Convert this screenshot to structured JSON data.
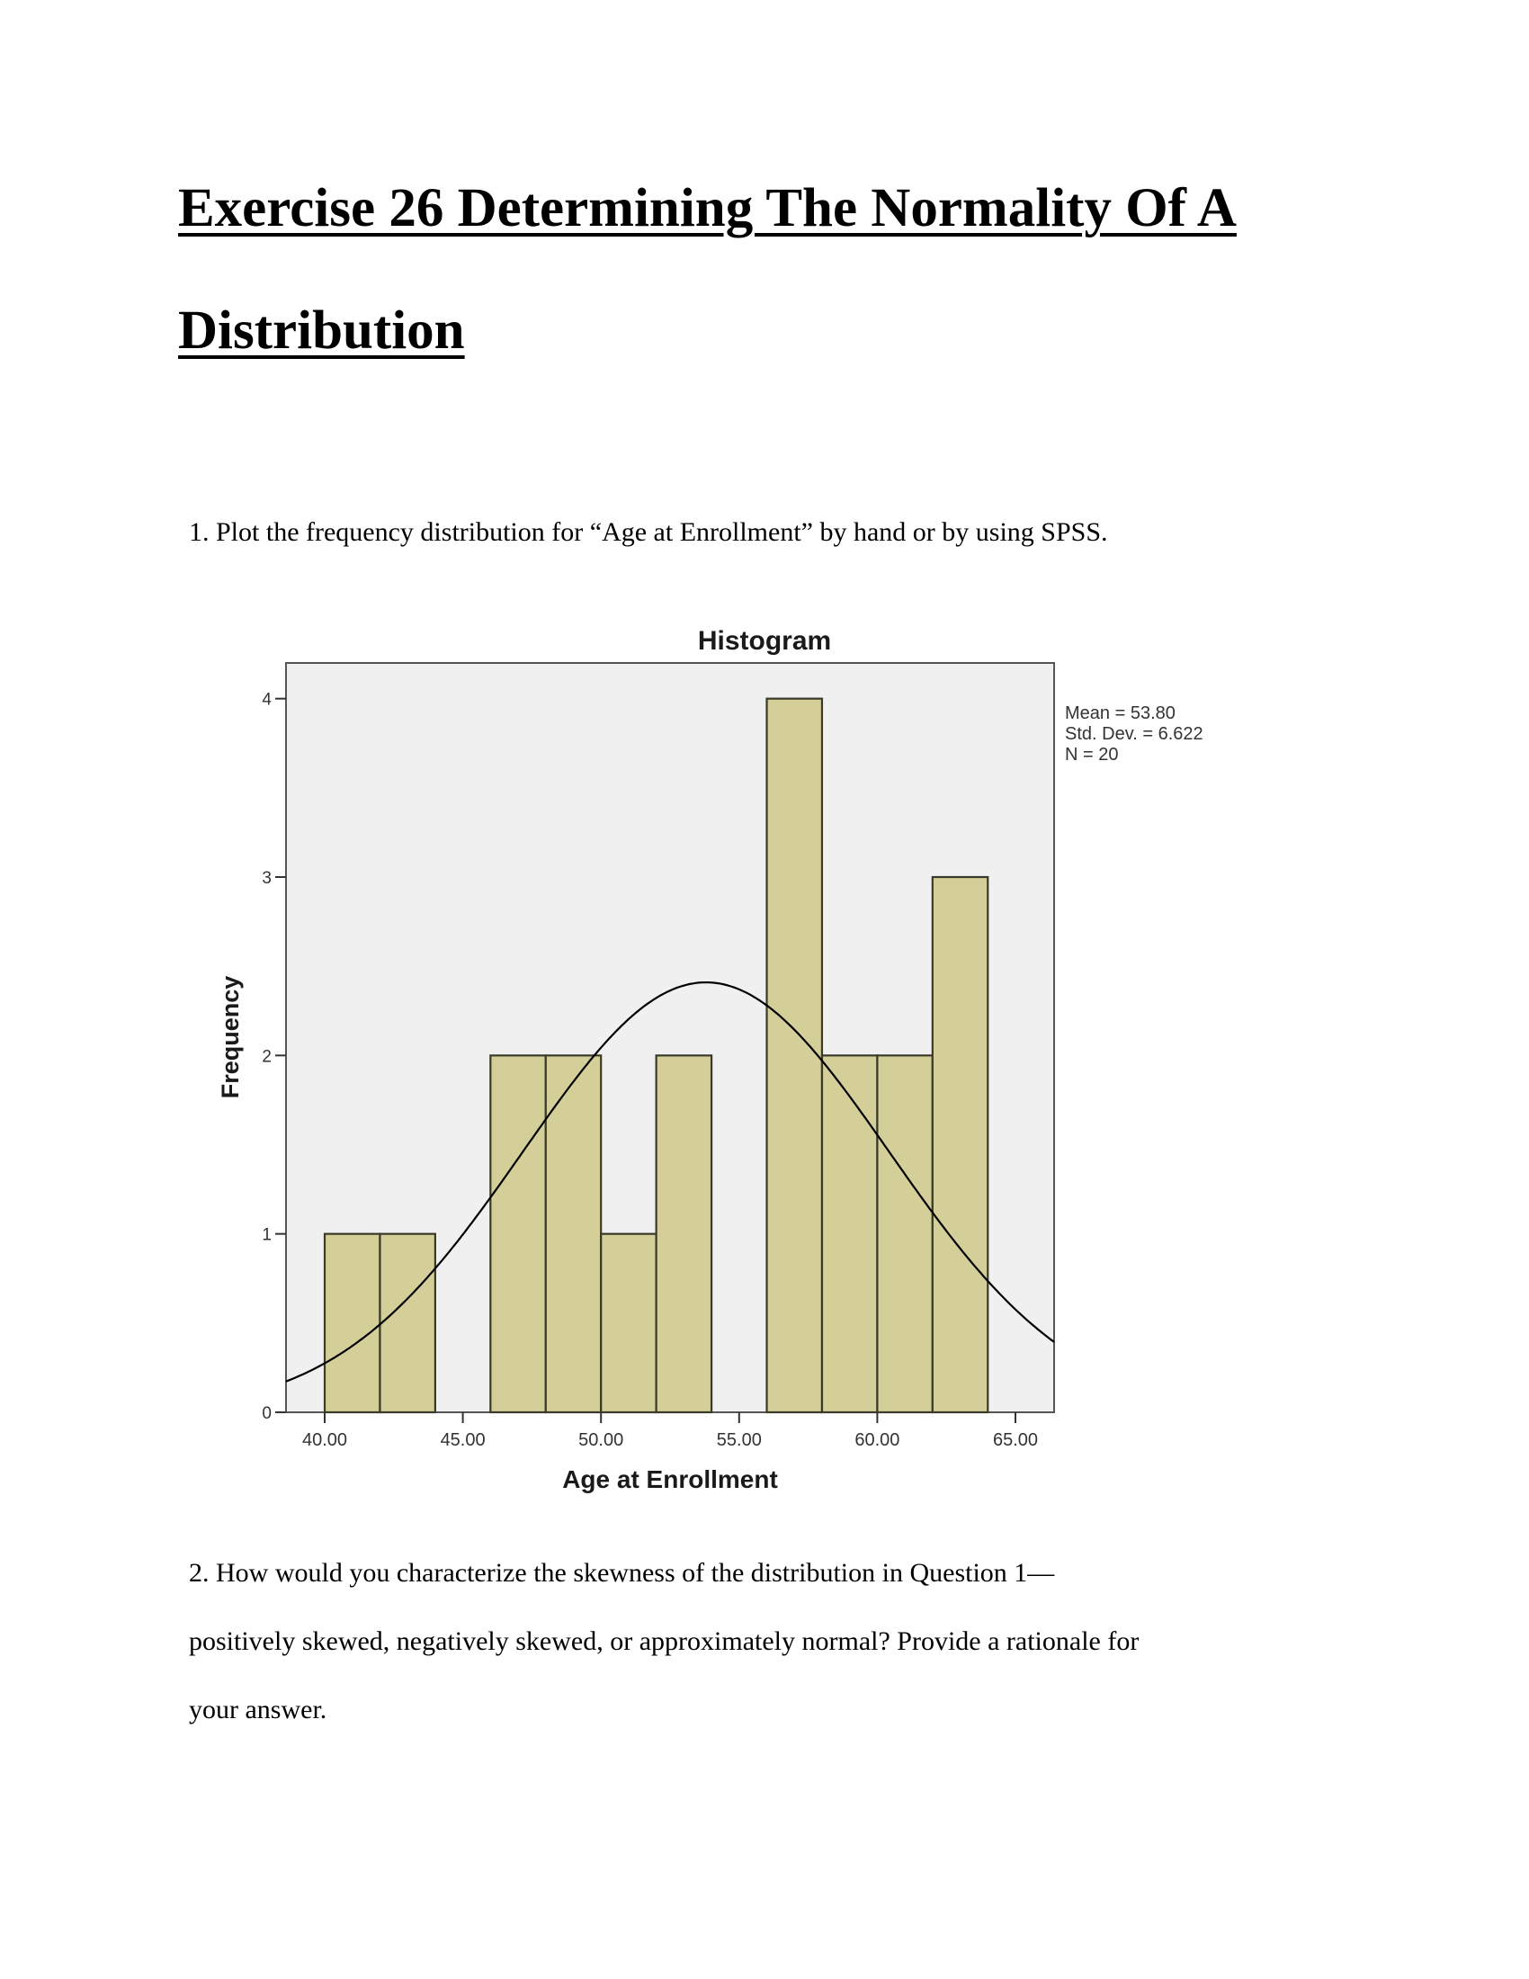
{
  "document": {
    "title_line1": "Exercise 26 Determining The Normality Of A",
    "title_line2": "Distribution",
    "question1": "1. Plot the frequency distribution for “Age at Enrollment” by hand or by using SPSS.",
    "question2_line1": "2. How would you characterize the skewness of the distribution in Question 1—",
    "question2_line2": "positively skewed, negatively skewed, or approximately normal? Provide a rationale for",
    "question2_line3": "your answer."
  },
  "chart_data": {
    "type": "bar",
    "title": "Histogram",
    "xlabel": "Age at Enrollment",
    "ylabel": "Frequency",
    "xlim": [
      38.6,
      66.4
    ],
    "ylim": [
      0,
      4.2
    ],
    "x_ticks": [
      40,
      45,
      50,
      55,
      60,
      65
    ],
    "x_tick_labels": [
      "40.00",
      "45.00",
      "50.00",
      "55.00",
      "60.00",
      "65.00"
    ],
    "y_ticks": [
      0,
      1,
      2,
      3,
      4
    ],
    "y_tick_labels": [
      "0",
      "1",
      "2",
      "3",
      "4"
    ],
    "bins": [
      {
        "start": 40,
        "end": 42,
        "count": 1
      },
      {
        "start": 42,
        "end": 44,
        "count": 1
      },
      {
        "start": 44,
        "end": 46,
        "count": 0
      },
      {
        "start": 46,
        "end": 48,
        "count": 2
      },
      {
        "start": 48,
        "end": 50,
        "count": 2
      },
      {
        "start": 50,
        "end": 52,
        "count": 1
      },
      {
        "start": 52,
        "end": 54,
        "count": 2
      },
      {
        "start": 54,
        "end": 56,
        "count": 0
      },
      {
        "start": 56,
        "end": 58,
        "count": 4
      },
      {
        "start": 58,
        "end": 60,
        "count": 2
      },
      {
        "start": 60,
        "end": 62,
        "count": 2
      },
      {
        "start": 62,
        "end": 64,
        "count": 3
      }
    ],
    "normal_curve": {
      "mean": 53.8,
      "sd": 6.622,
      "n": 20,
      "bin_width": 2
    },
    "stats_lines": [
      "Mean = 53.80",
      "Std. Dev. = 6.622",
      "N = 20"
    ],
    "grid": false,
    "legend": "right",
    "colors": {
      "bar_fill": "#d4cf98",
      "bar_stroke": "#3a3a2a",
      "plot_bg": "#f0f0f0",
      "curve": "#000000"
    }
  }
}
